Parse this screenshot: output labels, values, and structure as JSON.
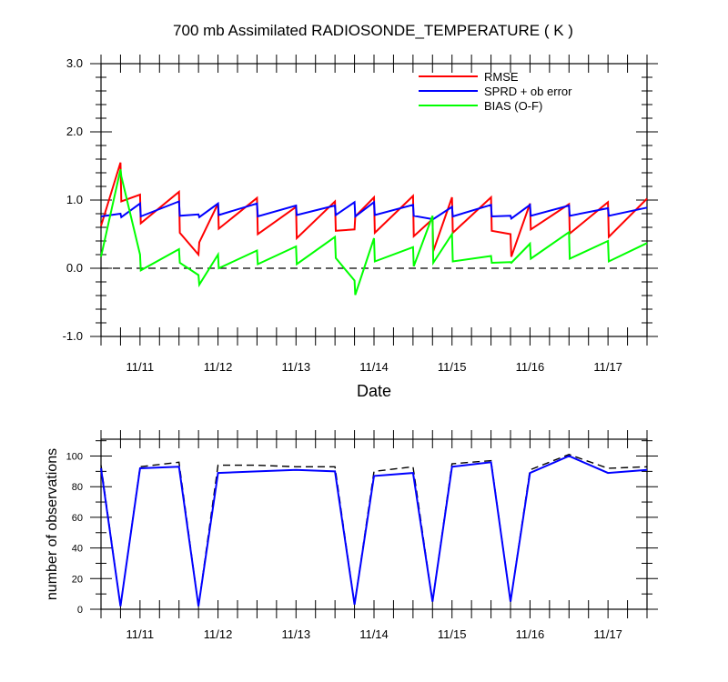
{
  "chart_data": [
    {
      "type": "line",
      "title": "700 mb Assimilated RADIOSONDE_TEMPERATURE ( K )",
      "xlabel": "Date",
      "ylabel": "",
      "ylim": [
        -1.0,
        3.0
      ],
      "xlim": [
        10.5,
        17.5
      ],
      "yticks": [
        -1.0,
        0.0,
        1.0,
        2.0,
        3.0
      ],
      "ytick_labels": [
        "-1.0",
        "0.0",
        "1.0",
        "2.0",
        "3.0"
      ],
      "xticks": [
        11,
        12,
        13,
        14,
        15,
        16,
        17
      ],
      "xtick_labels": [
        "11/11",
        "11/12",
        "11/13",
        "11/14",
        "11/15",
        "11/16",
        "11/17"
      ],
      "legend_position": "top-right",
      "reference_line": {
        "y": 0.0,
        "style": "dashed"
      },
      "series": [
        {
          "name": "RMSE",
          "color": "#ff0000",
          "points": [
            [
              10.5,
              0.62
            ],
            [
              10.75,
              1.55
            ],
            [
              10.76,
              0.98
            ],
            [
              11.0,
              1.08
            ],
            [
              11.01,
              0.66
            ],
            [
              11.5,
              1.12
            ],
            [
              11.51,
              0.52
            ],
            [
              11.75,
              0.2
            ],
            [
              11.76,
              0.38
            ],
            [
              12.0,
              0.95
            ],
            [
              12.01,
              0.58
            ],
            [
              12.5,
              1.03
            ],
            [
              12.51,
              0.5
            ],
            [
              13.0,
              0.9
            ],
            [
              13.01,
              0.44
            ],
            [
              13.5,
              0.98
            ],
            [
              13.51,
              0.55
            ],
            [
              13.75,
              0.57
            ],
            [
              13.76,
              0.76
            ],
            [
              14.0,
              1.04
            ],
            [
              14.01,
              0.52
            ],
            [
              14.5,
              1.06
            ],
            [
              14.51,
              0.47
            ],
            [
              14.75,
              0.72
            ],
            [
              14.76,
              0.25
            ],
            [
              15.0,
              1.04
            ],
            [
              15.01,
              0.52
            ],
            [
              15.5,
              1.04
            ],
            [
              15.51,
              0.55
            ],
            [
              15.75,
              0.5
            ],
            [
              15.76,
              0.17
            ],
            [
              16.0,
              0.95
            ],
            [
              16.01,
              0.57
            ],
            [
              16.5,
              0.94
            ],
            [
              16.51,
              0.51
            ],
            [
              17.0,
              0.97
            ],
            [
              17.01,
              0.46
            ],
            [
              17.5,
              1.02
            ]
          ]
        },
        {
          "name": "SPRD + ob error",
          "color": "#0000ff",
          "points": [
            [
              10.5,
              0.76
            ],
            [
              10.75,
              0.8
            ],
            [
              10.76,
              0.75
            ],
            [
              11.0,
              0.95
            ],
            [
              11.01,
              0.76
            ],
            [
              11.5,
              0.98
            ],
            [
              11.51,
              0.77
            ],
            [
              11.75,
              0.79
            ],
            [
              11.76,
              0.75
            ],
            [
              12.0,
              0.95
            ],
            [
              12.01,
              0.78
            ],
            [
              12.5,
              0.95
            ],
            [
              12.51,
              0.76
            ],
            [
              13.0,
              0.92
            ],
            [
              13.01,
              0.78
            ],
            [
              13.5,
              0.92
            ],
            [
              13.51,
              0.78
            ],
            [
              13.75,
              0.97
            ],
            [
              13.76,
              0.76
            ],
            [
              14.0,
              0.97
            ],
            [
              14.01,
              0.78
            ],
            [
              14.5,
              0.93
            ],
            [
              14.51,
              0.77
            ],
            [
              14.75,
              0.72
            ],
            [
              14.76,
              0.72
            ],
            [
              15.0,
              0.9
            ],
            [
              15.01,
              0.76
            ],
            [
              15.5,
              0.93
            ],
            [
              15.51,
              0.76
            ],
            [
              15.75,
              0.77
            ],
            [
              15.76,
              0.73
            ],
            [
              16.0,
              0.93
            ],
            [
              16.01,
              0.77
            ],
            [
              16.5,
              0.92
            ],
            [
              16.51,
              0.77
            ],
            [
              17.0,
              0.88
            ],
            [
              17.01,
              0.77
            ],
            [
              17.5,
              0.89
            ]
          ]
        },
        {
          "name": "BIAS (O-F)",
          "color": "#00ff00",
          "points": [
            [
              10.5,
              0.17
            ],
            [
              10.75,
              1.45
            ],
            [
              10.76,
              1.35
            ],
            [
              11.0,
              0.2
            ],
            [
              11.01,
              -0.03
            ],
            [
              11.5,
              0.28
            ],
            [
              11.51,
              0.08
            ],
            [
              11.75,
              -0.1
            ],
            [
              11.76,
              -0.24
            ],
            [
              12.0,
              0.2
            ],
            [
              12.01,
              0.0
            ],
            [
              12.5,
              0.26
            ],
            [
              12.51,
              0.06
            ],
            [
              13.0,
              0.32
            ],
            [
              13.01,
              0.06
            ],
            [
              13.5,
              0.46
            ],
            [
              13.51,
              0.15
            ],
            [
              13.75,
              -0.18
            ],
            [
              13.76,
              -0.39
            ],
            [
              14.0,
              0.44
            ],
            [
              14.01,
              0.1
            ],
            [
              14.5,
              0.31
            ],
            [
              14.51,
              0.03
            ],
            [
              14.75,
              0.77
            ],
            [
              14.76,
              0.08
            ],
            [
              15.0,
              0.5
            ],
            [
              15.01,
              0.1
            ],
            [
              15.5,
              0.18
            ],
            [
              15.51,
              0.08
            ],
            [
              15.75,
              0.09
            ],
            [
              15.76,
              0.08
            ],
            [
              16.0,
              0.36
            ],
            [
              16.01,
              0.14
            ],
            [
              16.5,
              0.53
            ],
            [
              16.51,
              0.14
            ],
            [
              17.0,
              0.4
            ],
            [
              17.01,
              0.1
            ],
            [
              17.5,
              0.37
            ]
          ]
        }
      ]
    },
    {
      "type": "line",
      "title": "",
      "xlabel": "",
      "ylabel": "number of observations",
      "ylim": [
        0,
        111
      ],
      "xlim": [
        10.5,
        17.5
      ],
      "yticks": [
        0,
        20,
        40,
        60,
        80,
        100
      ],
      "ytick_labels": [
        "0",
        "20",
        "40",
        "60",
        "80",
        "100"
      ],
      "xticks": [
        11,
        12,
        13,
        14,
        15,
        16,
        17
      ],
      "xtick_labels": [
        "11/11",
        "11/12",
        "11/13",
        "11/14",
        "11/15",
        "11/16",
        "11/17"
      ],
      "series": [
        {
          "color": "#000000",
          "style": "dashed",
          "points": [
            [
              10.5,
              94
            ],
            [
              10.75,
              2
            ],
            [
              11.0,
              93
            ],
            [
              11.5,
              96
            ],
            [
              11.75,
              2
            ],
            [
              12.0,
              94
            ],
            [
              12.5,
              94
            ],
            [
              13.0,
              93
            ],
            [
              13.5,
              93
            ],
            [
              13.75,
              3
            ],
            [
              14.0,
              90
            ],
            [
              14.5,
              93
            ],
            [
              14.75,
              5
            ],
            [
              15.0,
              95
            ],
            [
              15.5,
              97
            ],
            [
              15.75,
              5
            ],
            [
              16.0,
              91
            ],
            [
              16.5,
              101
            ],
            [
              17.0,
              92
            ],
            [
              17.5,
              93
            ]
          ]
        },
        {
          "color": "#0000ff",
          "style": "solid",
          "points": [
            [
              10.5,
              92
            ],
            [
              10.75,
              2
            ],
            [
              11.0,
              92
            ],
            [
              11.5,
              93
            ],
            [
              11.75,
              2
            ],
            [
              12.0,
              89
            ],
            [
              12.5,
              90
            ],
            [
              13.0,
              91
            ],
            [
              13.5,
              90
            ],
            [
              13.75,
              3
            ],
            [
              14.0,
              87
            ],
            [
              14.5,
              89
            ],
            [
              14.75,
              5
            ],
            [
              15.0,
              93
            ],
            [
              15.5,
              96
            ],
            [
              15.75,
              5
            ],
            [
              16.0,
              89
            ],
            [
              16.5,
              100
            ],
            [
              17.0,
              89
            ],
            [
              17.5,
              91
            ]
          ]
        }
      ]
    }
  ]
}
